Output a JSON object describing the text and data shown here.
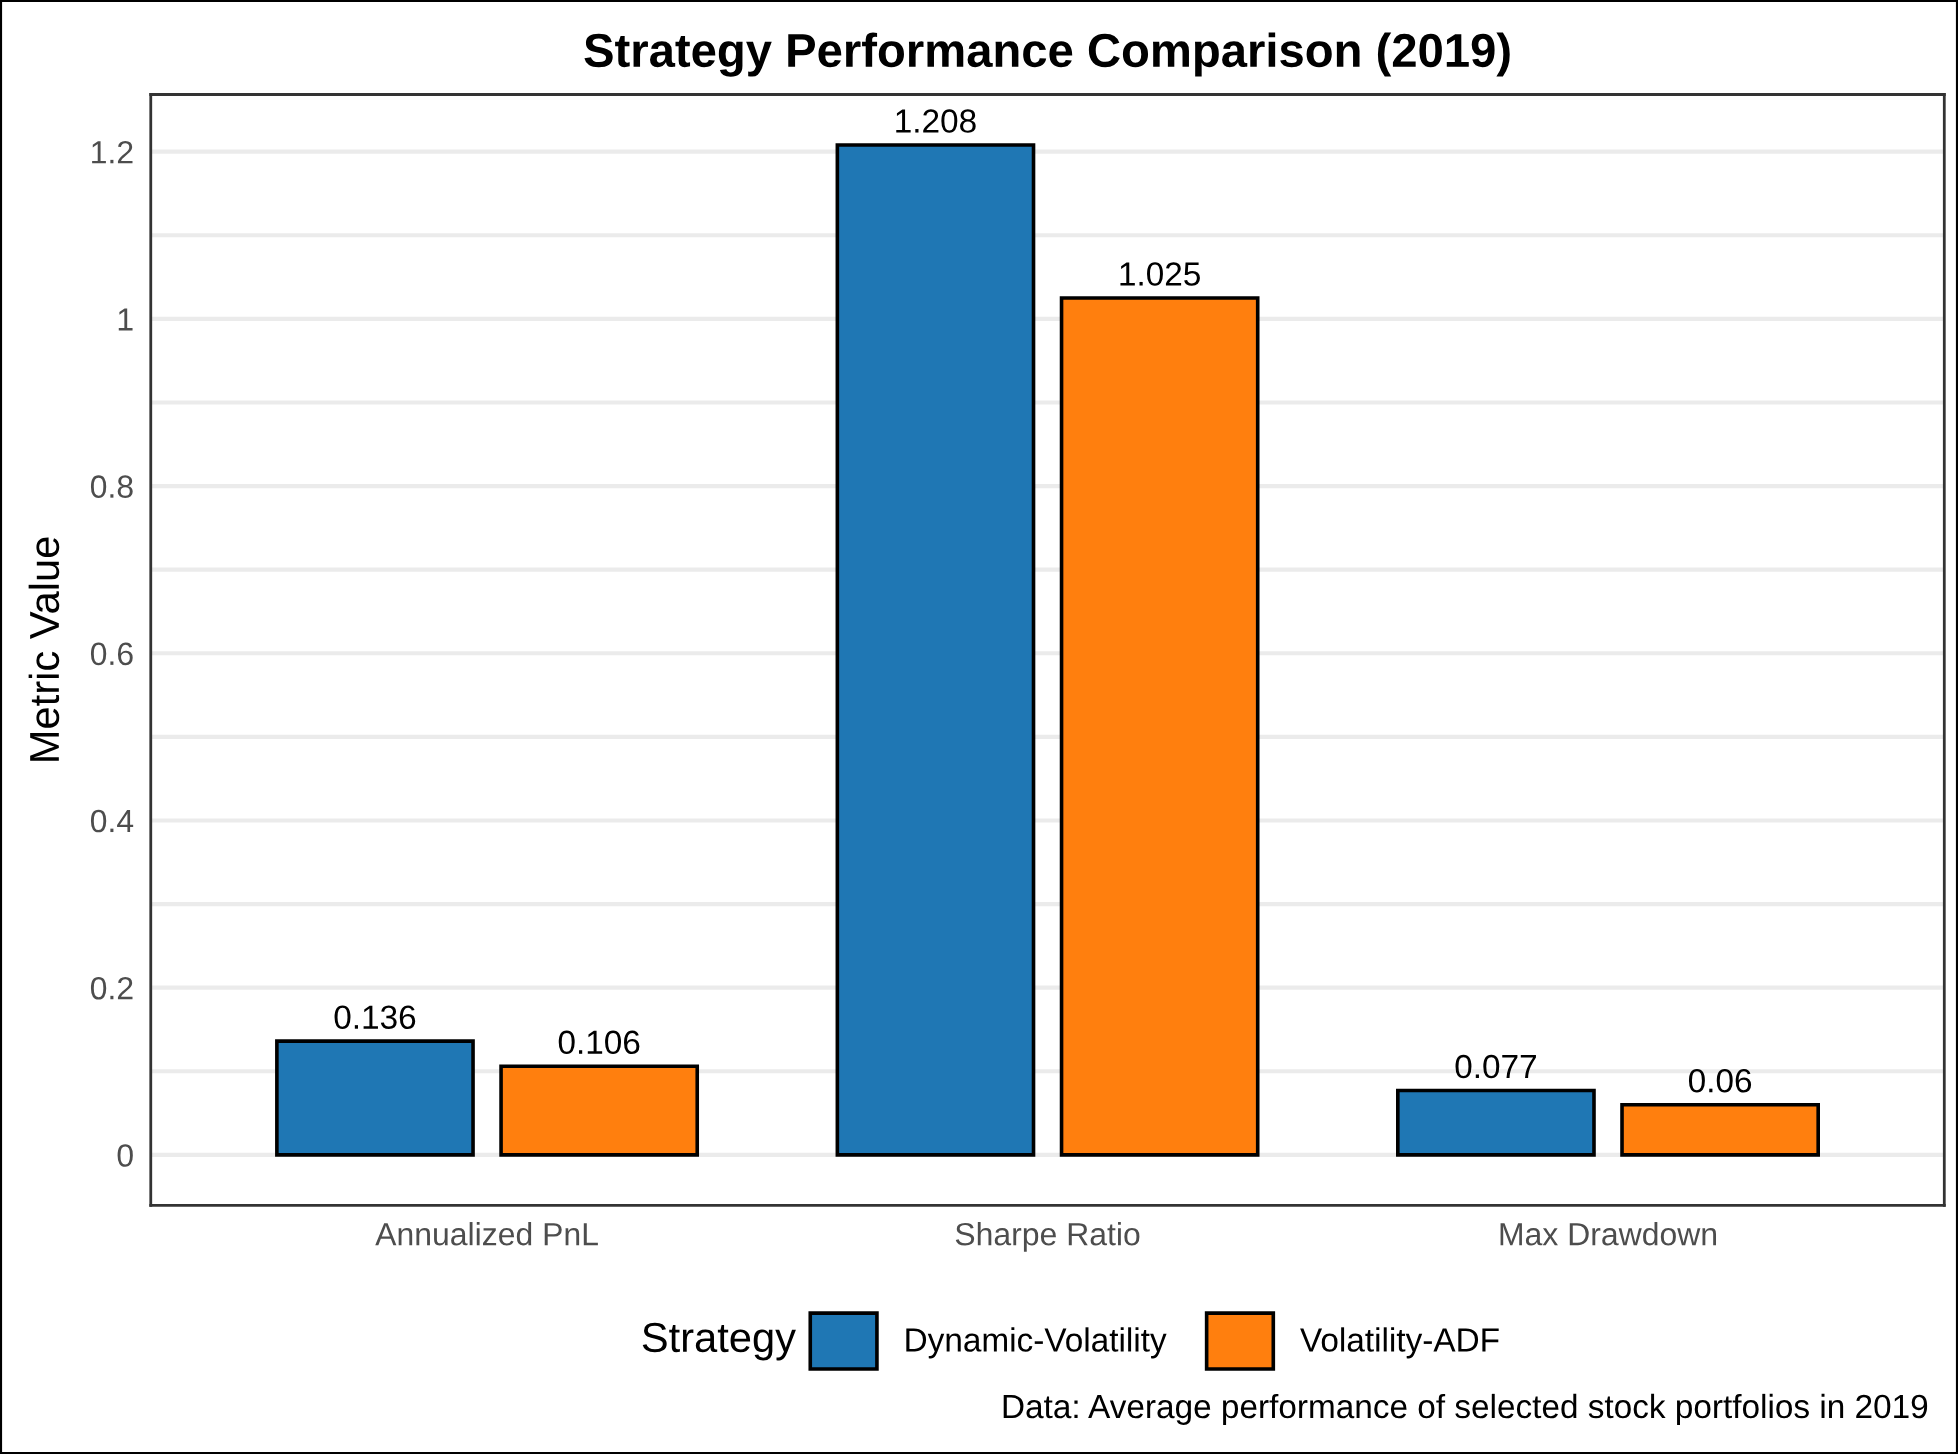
{
  "chart_data": {
    "type": "bar",
    "title": "Strategy Performance Comparison (2019)",
    "ylabel": "Metric Value",
    "legend_title": "Strategy",
    "categories": [
      "Annualized PnL",
      "Sharpe Ratio",
      "Max Drawdown"
    ],
    "series": [
      {
        "name": "Dynamic-Volatility",
        "color": "#1f77b4",
        "values": [
          0.136,
          1.208,
          0.077
        ]
      },
      {
        "name": "Volatility-ADF",
        "color": "#ff7f0e",
        "values": [
          0.106,
          1.025,
          0.06
        ]
      }
    ],
    "ylim": [
      -0.0604,
      1.2684
    ],
    "yticks": [
      0,
      {
        "value": 0.1,
        "label": null
      },
      0.2,
      {
        "value": 0.3,
        "label": null
      },
      0.4,
      {
        "value": 0.5,
        "label": null
      },
      0.6,
      {
        "value": 0.7,
        "label": null
      },
      0.8,
      {
        "value": 0.9,
        "label": null
      },
      1,
      {
        "value": 1.1,
        "label": null
      },
      1.2
    ],
    "grid": "y",
    "legend": "bottom",
    "data_labels": true,
    "annotations": [
      "Data: Average performance of selected stock portfolios in 2019"
    ]
  }
}
